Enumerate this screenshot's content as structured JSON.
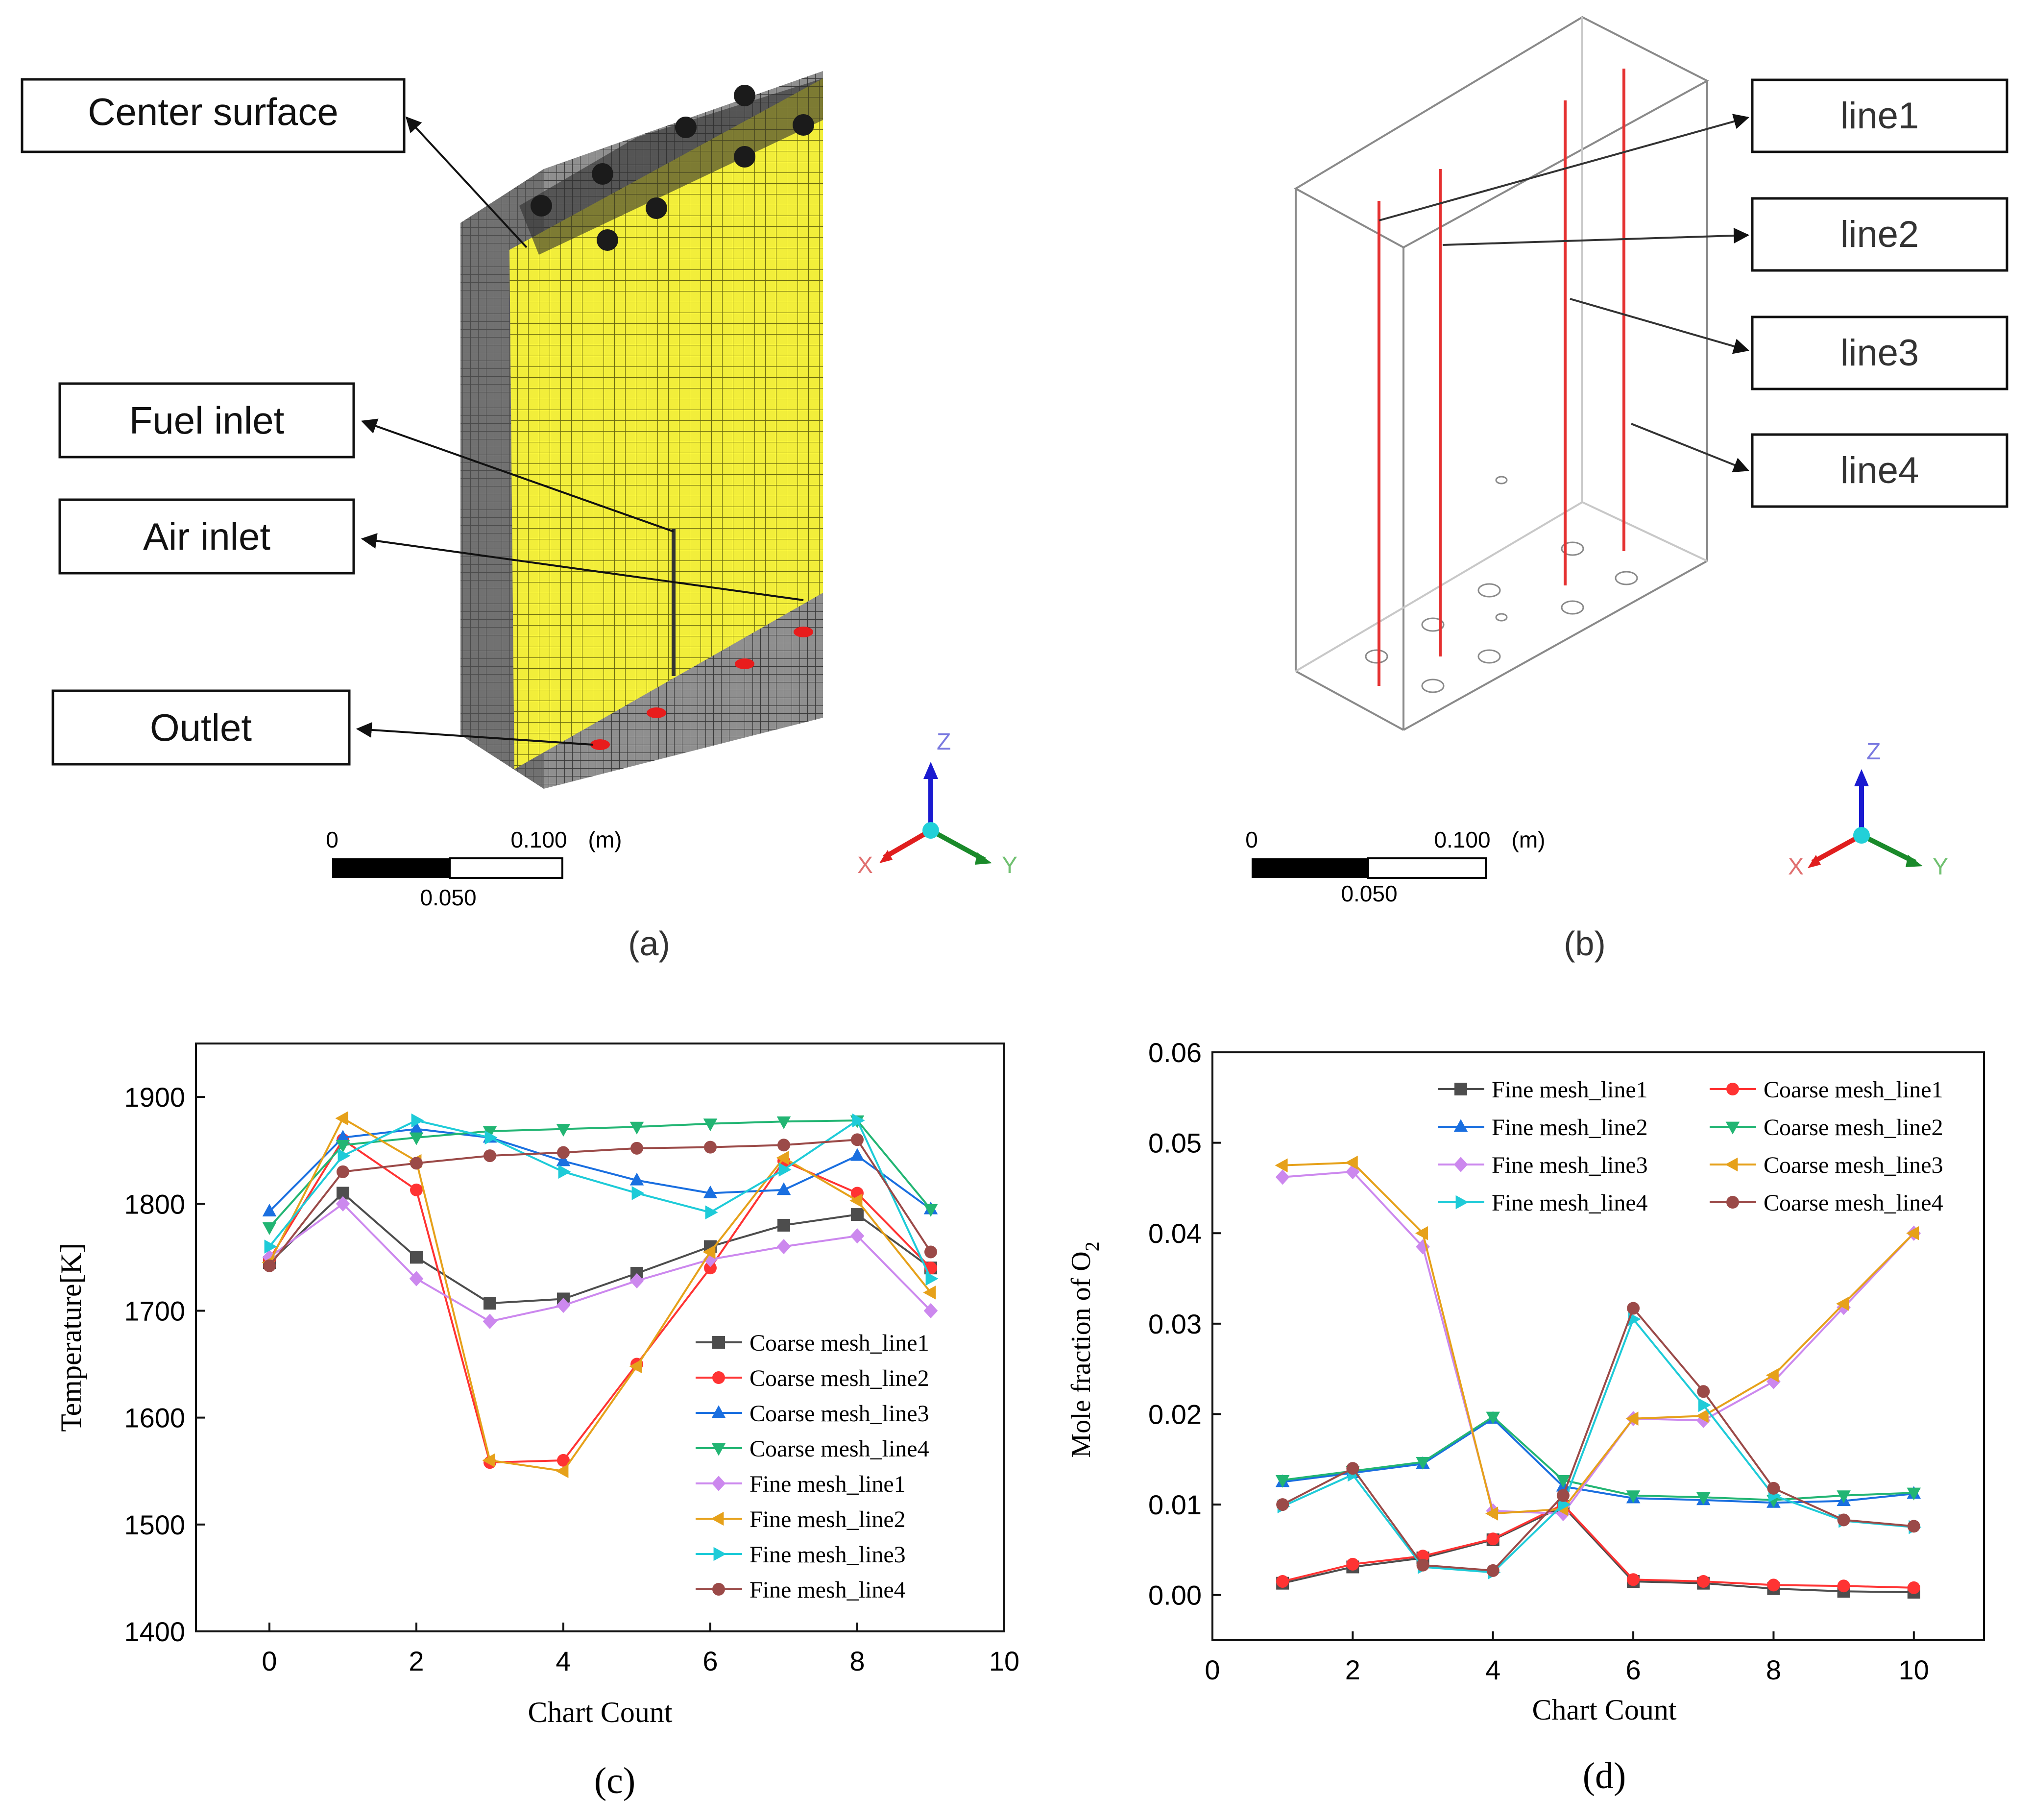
{
  "panel_a": {
    "labels": {
      "center_surface": "Center surface",
      "fuel_inlet": "Fuel inlet",
      "air_inlet": "Air inlet",
      "outlet": "Outlet"
    },
    "scale": {
      "zero": "0",
      "mid": "0.050",
      "max": "0.100",
      "unit": "(m)"
    },
    "axes": {
      "x": "X",
      "y": "Y",
      "z": "Z"
    },
    "caption": "(a)"
  },
  "panel_b": {
    "labels": {
      "line1": "line1",
      "line2": "line2",
      "line3": "line3",
      "line4": "line4"
    },
    "scale": {
      "zero": "0",
      "mid": "0.050",
      "max": "0.100",
      "unit": "(m)"
    },
    "axes": {
      "x": "X",
      "y": "Y",
      "z": "Z"
    },
    "caption": "(b)"
  },
  "chart_data": [
    {
      "type": "line",
      "caption": "(c)",
      "xlabel": "Chart Count",
      "ylabel": "Temperature[K]",
      "xlim": [
        -1,
        10
      ],
      "ylim": [
        1400,
        1950
      ],
      "xticks": [
        "0",
        "2",
        "4",
        "6",
        "8",
        "10"
      ],
      "yticks": [
        "1400",
        "1500",
        "1600",
        "1700",
        "1800",
        "1900"
      ],
      "legend_position": "bottom-right",
      "x": [
        0,
        1,
        2,
        3,
        4,
        5,
        6,
        7,
        8,
        9
      ],
      "series": [
        {
          "name": "Coarse mesh_line1",
          "color": "#4d4d4d",
          "marker": "square",
          "values": [
            1745,
            1810,
            1750,
            1707,
            1711,
            1735,
            1760,
            1780,
            1790,
            1740
          ]
        },
        {
          "name": "Coarse mesh_line2",
          "color": "#ff3333",
          "marker": "circle",
          "values": [
            1748,
            1860,
            1813,
            1558,
            1560,
            1650,
            1740,
            1840,
            1810,
            1740
          ]
        },
        {
          "name": "Coarse mesh_line3",
          "color": "#1a6fe0",
          "marker": "triangle-up",
          "values": [
            1793,
            1862,
            1870,
            1862,
            1840,
            1822,
            1810,
            1813,
            1845,
            1795
          ]
        },
        {
          "name": "Coarse mesh_line4",
          "color": "#22b573",
          "marker": "triangle-down",
          "values": [
            1778,
            1855,
            1862,
            1868,
            1870,
            1872,
            1875,
            1877,
            1878,
            1795
          ]
        },
        {
          "name": "Fine mesh_line1",
          "color": "#cc88ee",
          "marker": "diamond",
          "values": [
            1750,
            1800,
            1730,
            1690,
            1705,
            1728,
            1748,
            1760,
            1770,
            1700
          ]
        },
        {
          "name": "Fine mesh_line2",
          "color": "#e6a11a",
          "marker": "triangle-left",
          "values": [
            1745,
            1880,
            1840,
            1560,
            1550,
            1648,
            1755,
            1843,
            1803,
            1717
          ]
        },
        {
          "name": "Fine mesh_line3",
          "color": "#1ecbd8",
          "marker": "triangle-right",
          "values": [
            1760,
            1845,
            1878,
            1862,
            1830,
            1810,
            1792,
            1832,
            1878,
            1730
          ]
        },
        {
          "name": "Fine mesh_line4",
          "color": "#9b4a48",
          "marker": "circle",
          "values": [
            1742,
            1830,
            1838,
            1845,
            1848,
            1852,
            1853,
            1855,
            1860,
            1755
          ]
        }
      ]
    },
    {
      "type": "line",
      "caption": "(d)",
      "xlabel": "Chart Count",
      "ylabel": "Mole fraction of O",
      "ylabel_subscript": "2",
      "xlim": [
        0,
        11
      ],
      "ylim": [
        -0.005,
        0.06
      ],
      "xticks": [
        "0",
        "2",
        "4",
        "6",
        "8",
        "10"
      ],
      "yticks": [
        "0.00",
        "0.01",
        "0.02",
        "0.03",
        "0.04",
        "0.05",
        "0.06"
      ],
      "legend_position": "top",
      "x": [
        1,
        2,
        3,
        4,
        5,
        6,
        7,
        8,
        9,
        10
      ],
      "series": [
        {
          "name": "Fine mesh_line1",
          "color": "#4d4d4d",
          "marker": "square",
          "values": [
            0.0013,
            0.0031,
            0.0041,
            0.0061,
            0.0098,
            0.0015,
            0.0013,
            0.0007,
            0.0004,
            0.0003
          ]
        },
        {
          "name": "Coarse mesh_line1",
          "color": "#ff3333",
          "marker": "circle",
          "values": [
            0.0015,
            0.0034,
            0.0043,
            0.0062,
            0.01,
            0.0017,
            0.0015,
            0.0011,
            0.001,
            0.0008
          ]
        },
        {
          "name": "Fine mesh_line2",
          "color": "#1a6fe0",
          "marker": "triangle-up",
          "values": [
            0.0125,
            0.0135,
            0.0145,
            0.0195,
            0.012,
            0.0107,
            0.0105,
            0.0102,
            0.0104,
            0.0112
          ]
        },
        {
          "name": "Coarse mesh_line2",
          "color": "#22b573",
          "marker": "triangle-down",
          "values": [
            0.0127,
            0.0137,
            0.0147,
            0.0197,
            0.0127,
            0.011,
            0.0108,
            0.0105,
            0.011,
            0.0113
          ]
        },
        {
          "name": "Fine mesh_line3",
          "color": "#cc88ee",
          "marker": "diamond",
          "values": [
            0.0462,
            0.0468,
            0.0385,
            0.0093,
            0.009,
            0.0195,
            0.0193,
            0.0236,
            0.0318,
            0.04
          ]
        },
        {
          "name": "Coarse mesh_line3",
          "color": "#e6a11a",
          "marker": "triangle-left",
          "values": [
            0.0475,
            0.0478,
            0.04,
            0.009,
            0.0095,
            0.0195,
            0.0198,
            0.0243,
            0.0322,
            0.04
          ]
        },
        {
          "name": "Fine mesh_line4",
          "color": "#1ecbd8",
          "marker": "triangle-right",
          "values": [
            0.0098,
            0.0133,
            0.0031,
            0.0025,
            0.01,
            0.0305,
            0.021,
            0.011,
            0.0082,
            0.0075
          ]
        },
        {
          "name": "Coarse mesh_line4",
          "color": "#9b4a48",
          "marker": "circle",
          "values": [
            0.01,
            0.014,
            0.0033,
            0.0027,
            0.011,
            0.0317,
            0.0225,
            0.0118,
            0.0083,
            0.0076
          ]
        }
      ]
    }
  ]
}
